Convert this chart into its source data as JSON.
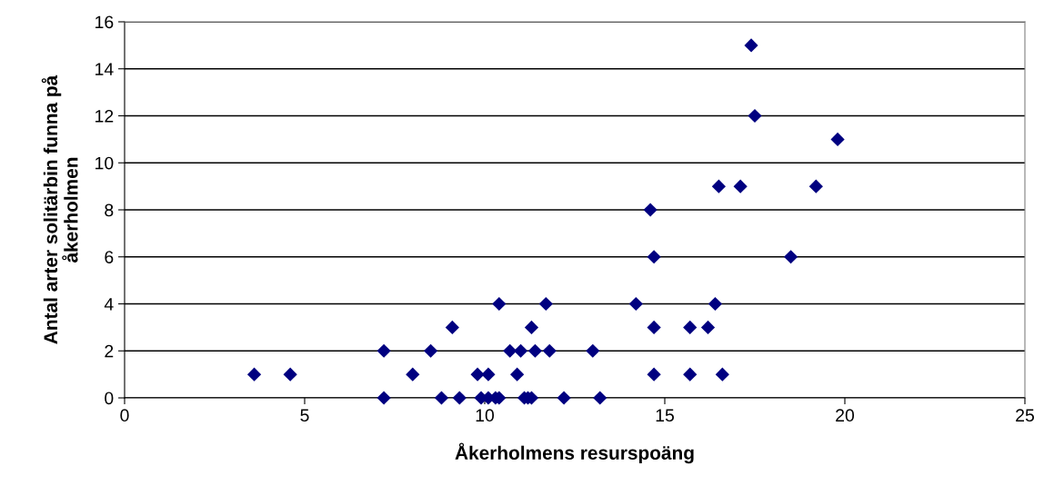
{
  "chart_data": {
    "type": "scatter",
    "xlabel": "Åkerholmens resurspoäng",
    "ylabel": "Antal arter solitärbin funna på\nåkerholmen",
    "x": [
      3.6,
      4.6,
      8.0,
      9.8,
      10.1,
      10.9,
      14.7,
      15.7,
      16.6,
      7.2,
      8.5,
      10.7,
      11.0,
      11.4,
      11.8,
      13.0,
      9.1,
      11.3,
      14.7,
      15.7,
      16.2,
      10.4,
      11.7,
      14.2,
      16.4,
      14.7,
      18.5,
      14.6,
      16.5,
      17.1,
      19.2,
      19.8,
      17.5,
      17.4,
      7.2,
      8.8,
      9.3,
      9.9,
      10.1,
      10.3,
      10.4,
      11.1,
      11.2,
      11.3,
      12.2,
      13.2
    ],
    "values": [
      1,
      1,
      1,
      1,
      1,
      1,
      1,
      1,
      1,
      2,
      2,
      2,
      2,
      2,
      2,
      2,
      3,
      3,
      3,
      3,
      3,
      4,
      4,
      4,
      4,
      6,
      6,
      8,
      9,
      9,
      9,
      11,
      12,
      15,
      0,
      0,
      0,
      0,
      0,
      0,
      0,
      0,
      0,
      0,
      0,
      0
    ],
    "color": "#000080",
    "marker": "diamond",
    "grid": "y",
    "xlim": [
      0,
      25
    ],
    "xticks": [
      0,
      5,
      10,
      15,
      20,
      25
    ],
    "ylim": [
      0,
      16
    ],
    "yticks": [
      0,
      2,
      4,
      6,
      8,
      10,
      12,
      14,
      16
    ]
  }
}
